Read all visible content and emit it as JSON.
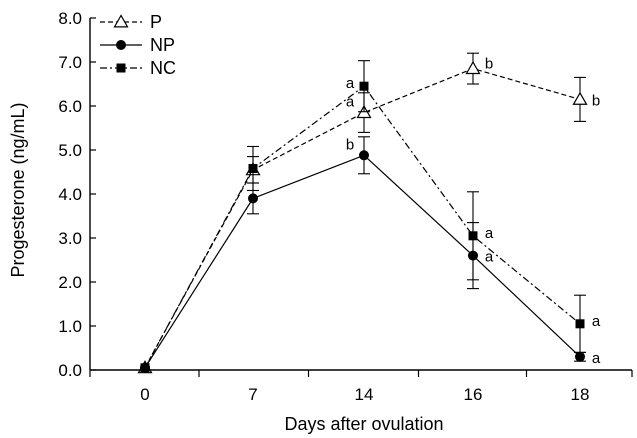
{
  "chart_data": {
    "type": "line",
    "xlabel": "Days after ovulation",
    "ylabel": "Progesterone (ng/mL)",
    "categories": [
      "0",
      "7",
      "14",
      "16",
      "18"
    ],
    "x": [
      0,
      7,
      14,
      16,
      18
    ],
    "ylim": [
      0,
      8
    ],
    "yticks": [
      "0.0",
      "1.0",
      "2.0",
      "3.0",
      "4.0",
      "5.0",
      "6.0",
      "7.0",
      "8.0"
    ],
    "grid": false,
    "legend_position": "top-left",
    "series": [
      {
        "name": "P",
        "marker": "open-triangle",
        "line_style": "dashed",
        "values": [
          0.05,
          4.55,
          5.85,
          6.85,
          6.15
        ],
        "errors": [
          0.05,
          0.3,
          0.45,
          0.35,
          0.5
        ],
        "labels": [
          "",
          "",
          "a",
          "b",
          "b"
        ]
      },
      {
        "name": "NP",
        "marker": "filled-circle",
        "line_style": "solid",
        "values": [
          0.05,
          3.9,
          4.88,
          2.6,
          0.3
        ],
        "errors": [
          0.05,
          0.35,
          0.42,
          0.75,
          0.1
        ],
        "labels": [
          "",
          "",
          "b",
          "a",
          "a"
        ]
      },
      {
        "name": "NC",
        "marker": "filled-square",
        "line_style": "dash-dot",
        "values": [
          0.05,
          4.58,
          6.45,
          3.05,
          1.05
        ],
        "errors": [
          0.05,
          0.5,
          0.58,
          1.0,
          0.65
        ],
        "labels": [
          "",
          "",
          "a",
          "a",
          "a"
        ]
      }
    ]
  }
}
